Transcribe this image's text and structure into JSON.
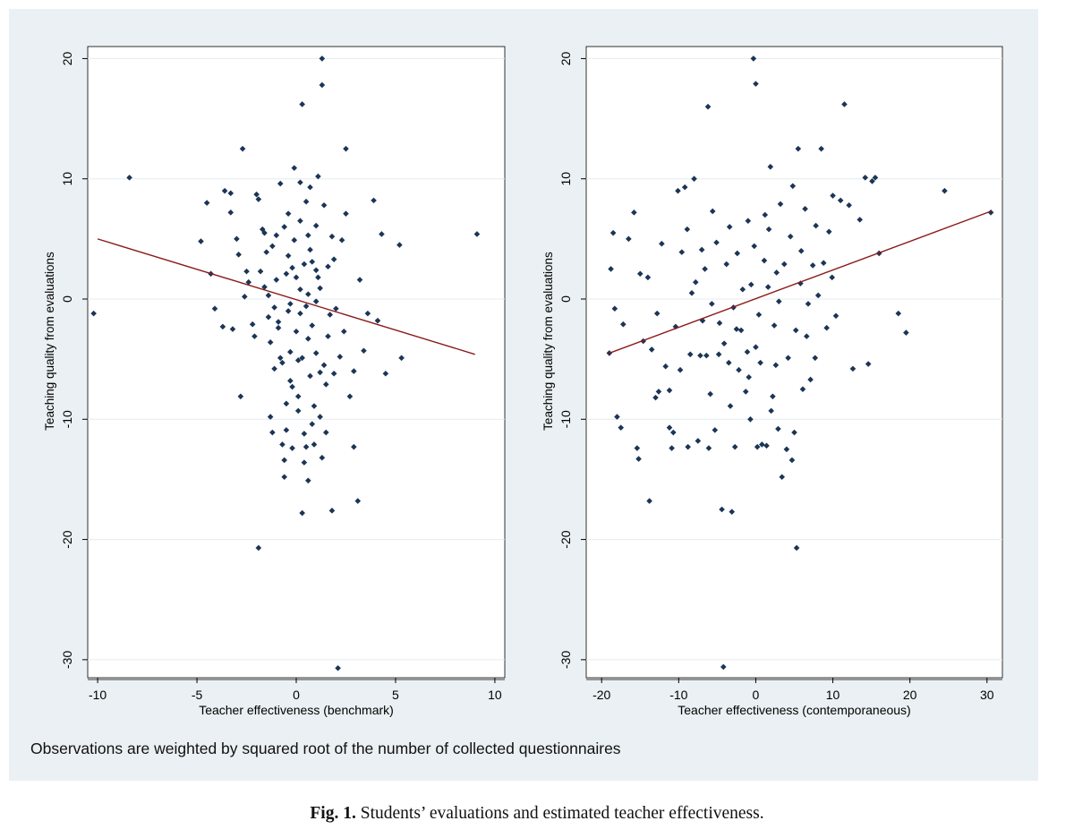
{
  "chart_data": [
    {
      "type": "scatter",
      "xlabel": "Teacher effectiveness (benchmark)",
      "ylabel": "Teaching quality from evaluations",
      "xlim": [
        -10.5,
        10.5
      ],
      "ylim": [
        -31.5,
        21
      ],
      "xticks": [
        -10,
        -5,
        0,
        5,
        10
      ],
      "yticks": [
        20,
        10,
        0,
        -10,
        -20,
        -30
      ],
      "fit_line": {
        "x": [
          -10,
          9
        ],
        "y": [
          5.0,
          -4.6
        ]
      },
      "points": [
        [
          -10.2,
          -1.2
        ],
        [
          -8.4,
          10.1
        ],
        [
          -4.8,
          4.8
        ],
        [
          -4.5,
          8
        ],
        [
          -4.3,
          2.1
        ],
        [
          -4.1,
          -0.8
        ],
        [
          -3.7,
          -2.3
        ],
        [
          -3.6,
          9
        ],
        [
          -3.3,
          8.8
        ],
        [
          -3.3,
          7.2
        ],
        [
          -3.2,
          -2.5
        ],
        [
          -3,
          5
        ],
        [
          -2.9,
          3.7
        ],
        [
          -2.7,
          12.5
        ],
        [
          -2.8,
          -8.1
        ],
        [
          -2.5,
          2.3
        ],
        [
          -2.4,
          1.4
        ],
        [
          -2.2,
          -2.1
        ],
        [
          -2.0,
          8.7
        ],
        [
          -1.9,
          8.3
        ],
        [
          -1.8,
          2.3
        ],
        [
          -1.7,
          5.8
        ],
        [
          -1.6,
          5.5
        ],
        [
          -1.5,
          3.9
        ],
        [
          -1.4,
          0.3
        ],
        [
          -1.4,
          -1.5
        ],
        [
          -1.3,
          -3.6
        ],
        [
          -1.3,
          -9.8
        ],
        [
          -1.2,
          -11.1
        ],
        [
          -1.9,
          -20.7
        ],
        [
          -1.1,
          -0.7
        ],
        [
          -1.0,
          5.3
        ],
        [
          -1.0,
          1.6
        ],
        [
          -0.9,
          -2.4
        ],
        [
          -0.8,
          -4.9
        ],
        [
          -0.8,
          9.6
        ],
        [
          -0.7,
          -5.3
        ],
        [
          -0.7,
          -12.1
        ],
        [
          -0.6,
          -14.8
        ],
        [
          -0.6,
          -13.4
        ],
        [
          -0.5,
          -10.9
        ],
        [
          -0.5,
          2.1
        ],
        [
          -0.4,
          3.6
        ],
        [
          -0.4,
          7.1
        ],
        [
          -0.3,
          -0.4
        ],
        [
          -0.3,
          -4.4
        ],
        [
          -0.2,
          -7.3
        ],
        [
          -0.2,
          -12.4
        ],
        [
          -0.1,
          10.9
        ],
        [
          -0.1,
          4.9
        ],
        [
          0,
          1.8
        ],
        [
          0,
          -2.7
        ],
        [
          0.1,
          -5.1
        ],
        [
          0.1,
          -8.1
        ],
        [
          0.2,
          9.7
        ],
        [
          0.2,
          6.5
        ],
        [
          0.2,
          -1.2
        ],
        [
          0.3,
          -4.9
        ],
        [
          0.3,
          16.2
        ],
        [
          0.3,
          -17.8
        ],
        [
          0.4,
          2.9
        ],
        [
          0.4,
          -11.2
        ],
        [
          0.5,
          -12.3
        ],
        [
          0.5,
          8.1
        ],
        [
          0.6,
          5.3
        ],
        [
          0.6,
          0.4
        ],
        [
          0.6,
          -3.3
        ],
        [
          0.7,
          -6.4
        ],
        [
          0.7,
          9.3
        ],
        [
          0.8,
          3.1
        ],
        [
          0.8,
          -2.2
        ],
        [
          0.9,
          -8.9
        ],
        [
          0.9,
          -12.1
        ],
        [
          1.0,
          6.1
        ],
        [
          1.0,
          -0.2
        ],
        [
          1.0,
          -4.5
        ],
        [
          1.1,
          10.2
        ],
        [
          1.1,
          1.8
        ],
        [
          1.2,
          -6.1
        ],
        [
          1.2,
          -9.8
        ],
        [
          1.3,
          -13.2
        ],
        [
          1.3,
          20
        ],
        [
          1.3,
          17.8
        ],
        [
          1.4,
          7.8
        ],
        [
          1.5,
          -11.1
        ],
        [
          1.6,
          2.7
        ],
        [
          1.6,
          -3.1
        ],
        [
          1.7,
          -1.3
        ],
        [
          1.8,
          5.2
        ],
        [
          1.8,
          -17.6
        ],
        [
          1.9,
          -6.2
        ],
        [
          2.0,
          -0.8
        ],
        [
          2.1,
          -30.7
        ],
        [
          2.3,
          4.9
        ],
        [
          2.4,
          -2.7
        ],
        [
          2.5,
          12.5
        ],
        [
          2.5,
          7.1
        ],
        [
          2.7,
          -8.1
        ],
        [
          2.9,
          -6.0
        ],
        [
          2.9,
          -12.3
        ],
        [
          3.1,
          -16.8
        ],
        [
          3.2,
          1.6
        ],
        [
          3.4,
          -4.3
        ],
        [
          3.6,
          -1.2
        ],
        [
          3.9,
          8.2
        ],
        [
          4.1,
          -1.8
        ],
        [
          4.3,
          5.4
        ],
        [
          4.5,
          -6.2
        ],
        [
          5.2,
          4.5
        ],
        [
          5.3,
          -4.9
        ],
        [
          9.1,
          5.4
        ],
        [
          -2.1,
          -3.1
        ],
        [
          -0.9,
          -1.9
        ],
        [
          0.5,
          -0.6
        ],
        [
          1.2,
          0.9
        ],
        [
          -0.2,
          2.6
        ],
        [
          0.7,
          4.1
        ],
        [
          -1.1,
          -5.8
        ],
        [
          1.5,
          -7.1
        ],
        [
          0.1,
          -9.3
        ],
        [
          -0.6,
          6.0
        ],
        [
          1.9,
          3.3
        ],
        [
          -1.6,
          1.0
        ],
        [
          0.4,
          -13.6
        ],
        [
          2.2,
          -4.8
        ],
        [
          -0.3,
          -6.8
        ],
        [
          1.0,
          2.4
        ],
        [
          -2.6,
          0.2
        ],
        [
          0.8,
          -10.4
        ],
        [
          -1.2,
          4.4
        ],
        [
          0.2,
          0.8
        ],
        [
          -0.5,
          -8.7
        ],
        [
          1.4,
          -5.5
        ],
        [
          0.6,
          -15.1
        ],
        [
          -0.4,
          -1.0
        ]
      ]
    },
    {
      "type": "scatter",
      "xlabel": "Teacher effectiveness (contemporaneous)",
      "ylabel": "Teaching quality from evaluations",
      "xlim": [
        -22,
        32
      ],
      "ylim": [
        -31.5,
        21
      ],
      "xticks": [
        -20,
        -10,
        0,
        10,
        20,
        30
      ],
      "yticks": [
        20,
        10,
        0,
        -10,
        -20,
        -30
      ],
      "fit_line": {
        "x": [
          -19,
          30.5
        ],
        "y": [
          -4.5,
          7.3
        ]
      },
      "points": [
        [
          -19,
          -4.5
        ],
        [
          -18.8,
          2.5
        ],
        [
          -18.5,
          5.5
        ],
        [
          -18.3,
          -0.8
        ],
        [
          -18,
          -9.8
        ],
        [
          -17.5,
          -10.7
        ],
        [
          -17.2,
          -2.1
        ],
        [
          -16.5,
          5
        ],
        [
          -15.8,
          7.2
        ],
        [
          -15.4,
          -12.4
        ],
        [
          -15.2,
          -13.3
        ],
        [
          -15,
          2.1
        ],
        [
          -14.6,
          -3.5
        ],
        [
          -14,
          1.8
        ],
        [
          -13.8,
          -16.8
        ],
        [
          -13.5,
          -4.2
        ],
        [
          -13,
          -8.2
        ],
        [
          -12.6,
          -7.7
        ],
        [
          -12.2,
          4.6
        ],
        [
          -11.7,
          -5.6
        ],
        [
          -11.2,
          -7.6
        ],
        [
          -11.2,
          -10.7
        ],
        [
          -10.9,
          -12.4
        ],
        [
          -10.7,
          -11.1
        ],
        [
          -10.4,
          -2.3
        ],
        [
          -10.1,
          9
        ],
        [
          -9.8,
          -5.9
        ],
        [
          -9.6,
          3.9
        ],
        [
          -9.2,
          9.3
        ],
        [
          -8.9,
          5.8
        ],
        [
          -8.8,
          -12.3
        ],
        [
          -8.5,
          -4.6
        ],
        [
          -8,
          10
        ],
        [
          -7.8,
          1.4
        ],
        [
          -7.5,
          -11.8
        ],
        [
          -7.2,
          -4.7
        ],
        [
          -6.9,
          -1.8
        ],
        [
          -6.6,
          2.5
        ],
        [
          -6.4,
          -4.7
        ],
        [
          -6.2,
          16
        ],
        [
          -6.1,
          -12.4
        ],
        [
          -5.7,
          -0.4
        ],
        [
          -5.6,
          7.3
        ],
        [
          -5.3,
          -10.9
        ],
        [
          -5.1,
          4.7
        ],
        [
          -4.8,
          -4.6
        ],
        [
          -4.4,
          -17.5
        ],
        [
          -4.2,
          -30.6
        ],
        [
          -4.1,
          -3.7
        ],
        [
          -3.8,
          2.9
        ],
        [
          -3.5,
          -5.3
        ],
        [
          -3.4,
          6
        ],
        [
          -3.1,
          -17.7
        ],
        [
          -2.9,
          -0.7
        ],
        [
          -2.7,
          -12.3
        ],
        [
          -2.4,
          3.8
        ],
        [
          -2.2,
          -5.9
        ],
        [
          -1.9,
          -2.6
        ],
        [
          -1.7,
          0.8
        ],
        [
          -1.3,
          -7.7
        ],
        [
          -1.1,
          -4.4
        ],
        [
          -0.7,
          -10
        ],
        [
          -0.6,
          1.2
        ],
        [
          -0.3,
          20
        ],
        [
          -0.2,
          4.4
        ],
        [
          0,
          17.9
        ],
        [
          0.2,
          -12.3
        ],
        [
          0.4,
          -1.3
        ],
        [
          0.6,
          -5.3
        ],
        [
          0.8,
          -12.1
        ],
        [
          1.1,
          3.2
        ],
        [
          1.4,
          -12.2
        ],
        [
          1.6,
          1
        ],
        [
          1.9,
          11
        ],
        [
          2.2,
          -8.1
        ],
        [
          2.4,
          -2.2
        ],
        [
          2.6,
          -5.5
        ],
        [
          2.9,
          -10.8
        ],
        [
          3.2,
          7.9
        ],
        [
          3.4,
          -14.8
        ],
        [
          3.7,
          2.9
        ],
        [
          4,
          -12.5
        ],
        [
          4.2,
          -4.9
        ],
        [
          4.5,
          5.2
        ],
        [
          4.7,
          -13.4
        ],
        [
          5,
          -11.1
        ],
        [
          5.2,
          -2.6
        ],
        [
          5.5,
          12.5
        ],
        [
          5.3,
          -20.7
        ],
        [
          5.8,
          1.3
        ],
        [
          6.1,
          -7.5
        ],
        [
          6.4,
          7.5
        ],
        [
          6.8,
          -0.4
        ],
        [
          7.1,
          -6.7
        ],
        [
          7.4,
          2.8
        ],
        [
          7.7,
          -4.9
        ],
        [
          8.1,
          0.3
        ],
        [
          8.5,
          12.5
        ],
        [
          8.8,
          3
        ],
        [
          9.2,
          -2.4
        ],
        [
          9.5,
          5.6
        ],
        [
          10,
          8.6
        ],
        [
          10.4,
          -1.4
        ],
        [
          11,
          8.2
        ],
        [
          11.5,
          16.2
        ],
        [
          12.1,
          7.8
        ],
        [
          12.6,
          -5.8
        ],
        [
          13.5,
          6.6
        ],
        [
          14.2,
          10.1
        ],
        [
          14.6,
          -5.4
        ],
        [
          15.1,
          9.8
        ],
        [
          15.5,
          10.1
        ],
        [
          16,
          3.8
        ],
        [
          18.5,
          -1.2
        ],
        [
          19.5,
          -2.8
        ],
        [
          24.5,
          9
        ],
        [
          30.5,
          7.2
        ],
        [
          -7.0,
          4.1
        ],
        [
          -2.5,
          -2.5
        ],
        [
          1.7,
          5.8
        ],
        [
          -4.7,
          -2.0
        ],
        [
          3.0,
          -0.2
        ],
        [
          0.0,
          -4.0
        ],
        [
          -1.0,
          6.5
        ],
        [
          5.9,
          4.0
        ],
        [
          -8.3,
          0.5
        ],
        [
          2.0,
          -9.3
        ],
        [
          7.8,
          6.1
        ],
        [
          -12.8,
          -1.2
        ],
        [
          9.9,
          1.8
        ],
        [
          -3.3,
          -8.9
        ],
        [
          4.8,
          9.4
        ],
        [
          -5.9,
          -7.9
        ],
        [
          2.7,
          2.2
        ],
        [
          6.6,
          -3.1
        ],
        [
          -0.9,
          -6.5
        ],
        [
          1.2,
          7.0
        ]
      ]
    }
  ],
  "note": "Observations are weighted by squared root of the number of collected questionnaires",
  "caption": {
    "label": "Fig. 1.",
    "text": " Students’ evaluations and estimated teacher effectiveness."
  }
}
